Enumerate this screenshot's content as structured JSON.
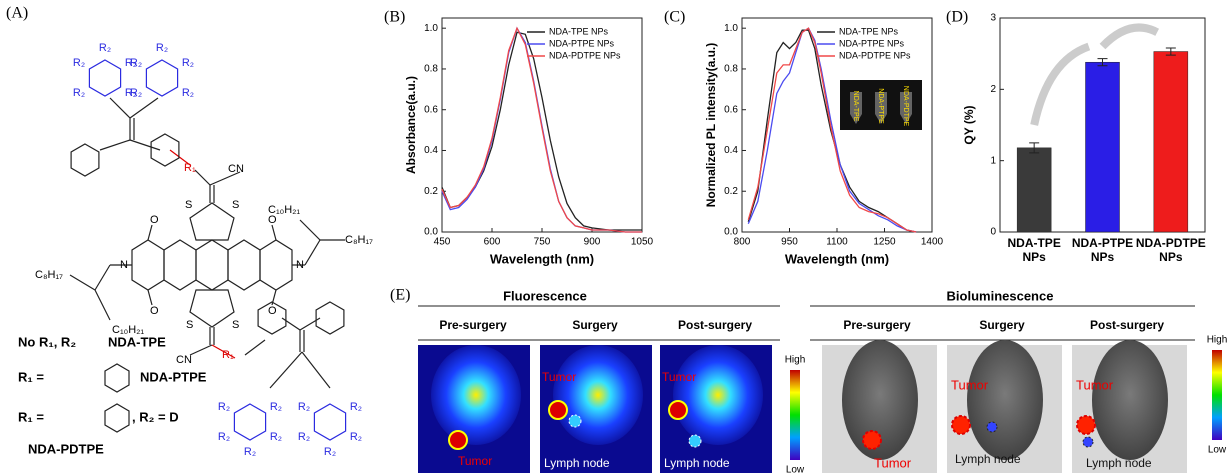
{
  "panel_labels": [
    "(A)",
    "(B)",
    "(C)",
    "(D)",
    "(E)"
  ],
  "structure": {
    "r2": "R₂",
    "r1": "R₁",
    "cn": "CN",
    "s": "S",
    "o": "O",
    "n": "N",
    "c10": "C₁₀H₂₁",
    "c8": "C₈H₁₇",
    "no_r": "No R₁,  R₂",
    "tpe": "NDA-TPE",
    "r1_eq": "R₁ =",
    "ptpe": "NDA-PTPE",
    "r2_eq": ", R₂ = D",
    "pdtpe": "NDA-PDTPE"
  },
  "chart_data": [
    {
      "type": "line",
      "xlabel": "Wavelength  (nm)",
      "ylabel": "Absorbance(a.u.)",
      "x": [
        450,
        475,
        500,
        525,
        550,
        575,
        600,
        625,
        650,
        675,
        700,
        725,
        750,
        775,
        800,
        825,
        850,
        875,
        900,
        950,
        1000,
        1050
      ],
      "series": [
        {
          "name": "NDA-TPE NPs",
          "color": "#222222",
          "values": [
            0.22,
            0.12,
            0.13,
            0.17,
            0.22,
            0.3,
            0.42,
            0.6,
            0.82,
            0.98,
            0.97,
            0.85,
            0.66,
            0.45,
            0.27,
            0.14,
            0.07,
            0.03,
            0.02,
            0.01,
            0.01,
            0.01
          ]
        },
        {
          "name": "NDA-PTPE NPs",
          "color": "#4b4bf0",
          "values": [
            0.2,
            0.11,
            0.12,
            0.16,
            0.22,
            0.31,
            0.45,
            0.65,
            0.88,
            1.0,
            0.93,
            0.74,
            0.52,
            0.31,
            0.15,
            0.07,
            0.03,
            0.02,
            0.01,
            0.01,
            0.0,
            0.0
          ]
        },
        {
          "name": "NDA-PDTPE NPs",
          "color": "#f04848",
          "values": [
            0.21,
            0.12,
            0.13,
            0.17,
            0.23,
            0.32,
            0.46,
            0.66,
            0.89,
            1.0,
            0.92,
            0.73,
            0.51,
            0.3,
            0.15,
            0.07,
            0.03,
            0.02,
            0.01,
            0.01,
            0.0,
            0.0
          ]
        }
      ],
      "xlim": [
        450,
        1050
      ],
      "xticks": [
        450,
        600,
        750,
        900,
        1050
      ],
      "ylim": [
        0,
        1.05
      ],
      "yticks": [
        {
          "value": 0,
          "label": "0.0"
        },
        {
          "value": 0.2,
          "label": "0.2"
        },
        {
          "value": 0.4,
          "label": "0.4"
        },
        {
          "value": 0.6,
          "label": "0.6"
        },
        {
          "value": 0.8,
          "label": "0.8"
        },
        {
          "value": 1.0,
          "label": "1.0"
        }
      ],
      "legend": "upper right"
    },
    {
      "type": "line",
      "xlabel": "Wavelength  (nm)",
      "ylabel": "Normalized PL intensity(a.u.)",
      "x": [
        820,
        850,
        880,
        910,
        930,
        950,
        970,
        990,
        1010,
        1030,
        1050,
        1080,
        1110,
        1140,
        1170,
        1200,
        1230,
        1260,
        1290,
        1320,
        1350
      ],
      "series": [
        {
          "name": "NDA-TPE NPs",
          "color": "#222222",
          "values": [
            0.05,
            0.2,
            0.55,
            0.88,
            0.93,
            0.9,
            0.93,
            0.99,
            0.99,
            0.9,
            0.72,
            0.5,
            0.33,
            0.22,
            0.15,
            0.12,
            0.1,
            0.07,
            0.04,
            0.01,
            0.0
          ]
        },
        {
          "name": "NDA-PTPE NPs",
          "color": "#4b4bf0",
          "values": [
            0.04,
            0.15,
            0.4,
            0.68,
            0.74,
            0.78,
            0.88,
            0.98,
            1.0,
            0.94,
            0.8,
            0.55,
            0.33,
            0.2,
            0.14,
            0.11,
            0.08,
            0.06,
            0.03,
            0.01,
            0.0
          ]
        },
        {
          "name": "NDA-PDTPE NPs",
          "color": "#f04848",
          "values": [
            0.06,
            0.22,
            0.5,
            0.78,
            0.82,
            0.82,
            0.9,
            0.98,
            1.0,
            0.93,
            0.78,
            0.52,
            0.3,
            0.18,
            0.12,
            0.1,
            0.09,
            0.07,
            0.04,
            0.01,
            0.0
          ]
        }
      ],
      "xlim": [
        800,
        1400
      ],
      "xticks": [
        800,
        950,
        1100,
        1250,
        1400
      ],
      "ylim": [
        0,
        1.05
      ],
      "yticks": [
        {
          "value": 0,
          "label": "0.0"
        },
        {
          "value": 0.2,
          "label": "0.2"
        },
        {
          "value": 0.4,
          "label": "0.4"
        },
        {
          "value": 0.6,
          "label": "0.6"
        },
        {
          "value": 0.8,
          "label": "0.8"
        },
        {
          "value": 1.0,
          "label": "1.0"
        }
      ],
      "legend": "upper right",
      "inset_labels": [
        "NDA-TPE",
        "NDA-PTPE",
        "NDA-PDTPE"
      ]
    },
    {
      "type": "bar",
      "ylabel": "QY (%)",
      "categories": [
        "NDA-TPE\nNPs",
        "NDA-PTPE\nNPs",
        "NDA-PDTPE\nNPs"
      ],
      "values": [
        1.18,
        2.38,
        2.53
      ],
      "errors": [
        0.07,
        0.05,
        0.05
      ],
      "colors": [
        "#3a3a3a",
        "#2a1ee6",
        "#ee1c1c"
      ],
      "ylim": [
        0,
        3
      ],
      "yticks": [
        0,
        1,
        2,
        3
      ]
    }
  ],
  "imaging": {
    "fluorescence": "Fluorescence",
    "bioluminescence": "Bioluminescence",
    "stages": [
      "Pre-surgery",
      "Surgery",
      "Post-surgery"
    ],
    "tumor": "Tumor",
    "lymph_node": "Lymph node",
    "high": "High",
    "low": "Low"
  }
}
